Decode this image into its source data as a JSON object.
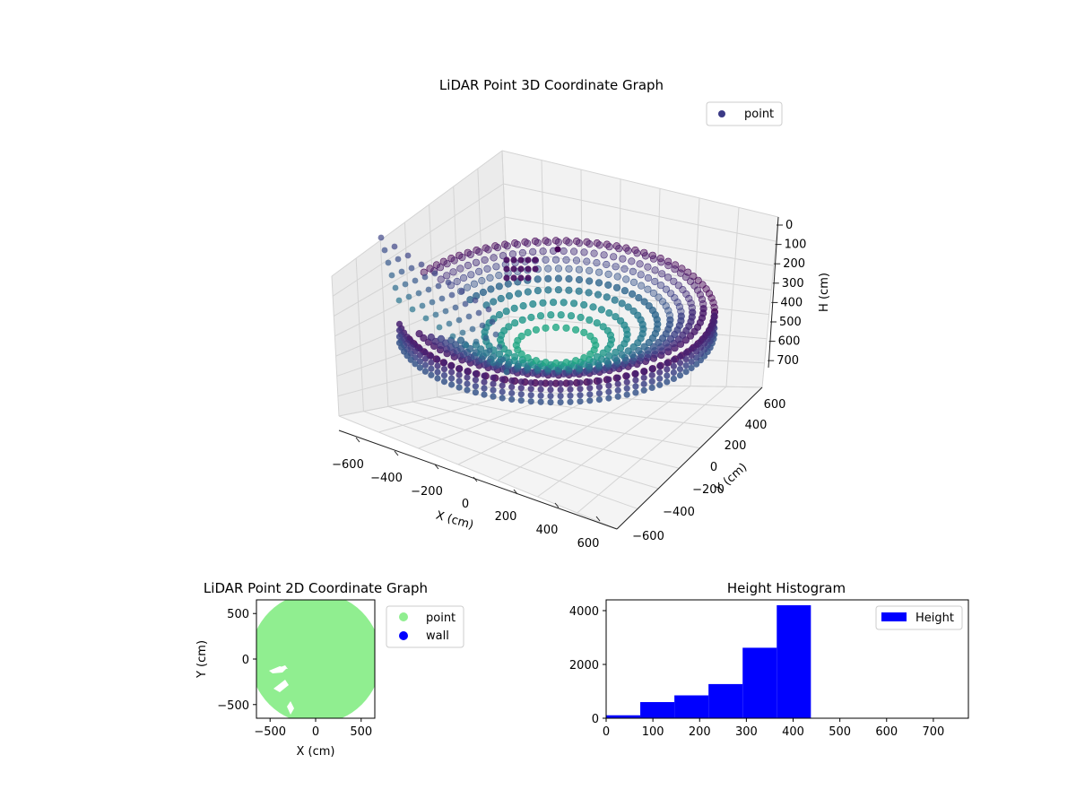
{
  "chart_data": [
    {
      "type": "scatter",
      "title": "LiDAR Point 3D Coordinate Graph",
      "xlabel": "X (cm)",
      "ylabel": "Y (cm)",
      "zlabel": "H (cm)",
      "xticks": [
        "−600",
        "−400",
        "−200",
        "0",
        "200",
        "400",
        "600"
      ],
      "yticks": [
        "−600",
        "−400",
        "−200",
        "0",
        "200",
        "400",
        "600"
      ],
      "zticks": [
        "0",
        "100",
        "200",
        "300",
        "400",
        "500",
        "600",
        "700"
      ],
      "xlim": [
        -700,
        700
      ],
      "ylim": [
        -700,
        700
      ],
      "zlim": [
        0,
        750
      ],
      "z_inverted": true,
      "grid": true,
      "colormap": "viridis",
      "legend": {
        "position": "top-right",
        "entries": [
          {
            "name": "point",
            "color": "#3b3a86"
          }
        ]
      }
    },
    {
      "type": "scatter",
      "title": "LiDAR Point 2D Coordinate Graph",
      "xlabel": "X (cm)",
      "ylabel": "Y (cm)",
      "xticks": [
        "−500",
        "0",
        "500"
      ],
      "yticks": [
        "500",
        "0",
        "−500"
      ],
      "xlim": [
        -650,
        650
      ],
      "ylim": [
        -650,
        650
      ],
      "series": [
        {
          "name": "point",
          "color": "#90ee90"
        },
        {
          "name": "wall",
          "color": "#0000ff"
        }
      ],
      "legend": {
        "position": "outside-right"
      }
    },
    {
      "type": "bar",
      "title": "Height Histogram",
      "xticks": [
        "0",
        "100",
        "200",
        "300",
        "400",
        "500",
        "600",
        "700"
      ],
      "yticks": [
        "0",
        "2000",
        "4000"
      ],
      "xlim": [
        0,
        775
      ],
      "ylim": [
        0,
        4400
      ],
      "bins": [
        {
          "x0": 0,
          "x1": 73,
          "count": 110
        },
        {
          "x0": 73,
          "x1": 146,
          "count": 600
        },
        {
          "x0": 146,
          "x1": 219,
          "count": 850
        },
        {
          "x0": 219,
          "x1": 292,
          "count": 1270
        },
        {
          "x0": 292,
          "x1": 365,
          "count": 2620
        },
        {
          "x0": 365,
          "x1": 438,
          "count": 4200
        }
      ],
      "series": [
        {
          "name": "Height",
          "color": "#0000ff"
        }
      ],
      "legend": {
        "position": "top-right"
      }
    }
  ]
}
